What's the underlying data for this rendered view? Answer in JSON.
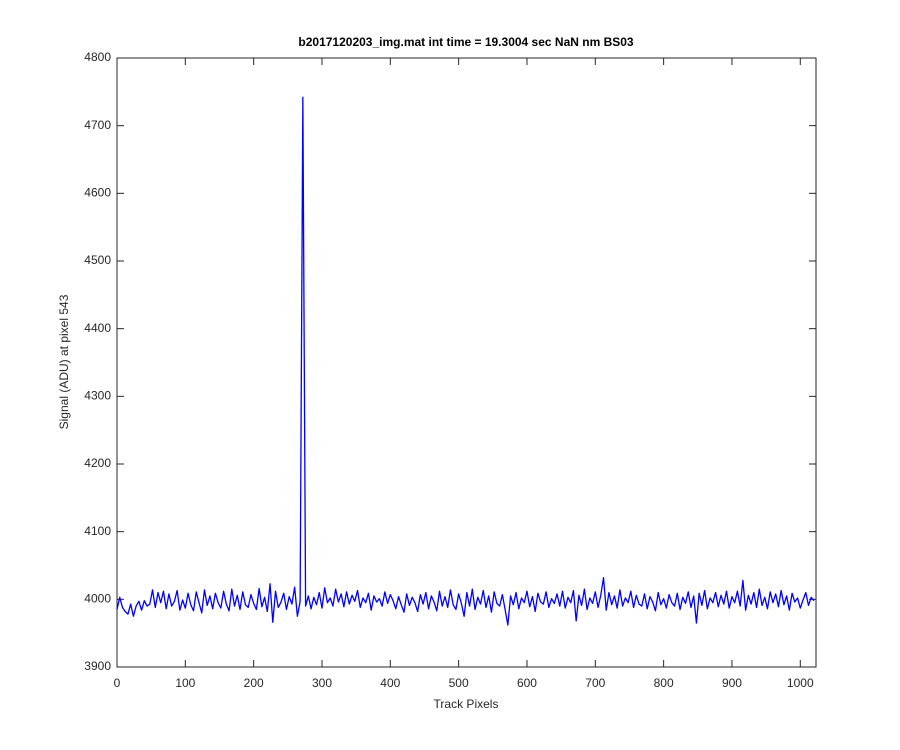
{
  "chart_data": {
    "type": "line",
    "title": "b2017120203_img.mat int time = 19.3004 sec  NaN nm BS03",
    "x_label": "Track Pixels",
    "y_label": "Signal (ADU) at pixel 543",
    "color": "#0000ff",
    "xlim": [
      0,
      1023
    ],
    "ylim": [
      3900,
      4800
    ],
    "xticks": [
      0,
      100,
      200,
      300,
      400,
      500,
      600,
      700,
      800,
      900,
      1000
    ],
    "yticks": [
      3900,
      4000,
      4100,
      4200,
      4300,
      4400,
      4500,
      4600,
      4700,
      4800
    ],
    "grid": false,
    "x": [
      0,
      4,
      8,
      12,
      16,
      20,
      24,
      28,
      32,
      36,
      40,
      44,
      48,
      52,
      56,
      60,
      64,
      68,
      72,
      76,
      80,
      84,
      88,
      92,
      96,
      100,
      104,
      108,
      112,
      116,
      120,
      124,
      128,
      132,
      136,
      140,
      144,
      148,
      152,
      156,
      160,
      164,
      168,
      172,
      176,
      180,
      184,
      188,
      192,
      196,
      200,
      204,
      208,
      212,
      216,
      220,
      224,
      228,
      232,
      236,
      240,
      244,
      248,
      252,
      256,
      260,
      264,
      268,
      272,
      276,
      280,
      284,
      288,
      292,
      296,
      300,
      304,
      308,
      312,
      316,
      320,
      324,
      328,
      332,
      336,
      340,
      344,
      348,
      352,
      356,
      360,
      364,
      368,
      372,
      376,
      380,
      384,
      388,
      392,
      396,
      400,
      404,
      408,
      412,
      416,
      420,
      424,
      428,
      432,
      436,
      440,
      444,
      448,
      452,
      456,
      460,
      464,
      468,
      472,
      476,
      480,
      484,
      488,
      492,
      496,
      500,
      504,
      508,
      512,
      516,
      520,
      524,
      528,
      532,
      536,
      540,
      544,
      548,
      552,
      556,
      560,
      564,
      568,
      572,
      576,
      580,
      584,
      588,
      592,
      596,
      600,
      604,
      608,
      612,
      616,
      620,
      624,
      628,
      632,
      636,
      640,
      644,
      648,
      652,
      656,
      660,
      664,
      668,
      672,
      676,
      680,
      684,
      688,
      692,
      696,
      700,
      704,
      708,
      712,
      716,
      720,
      724,
      728,
      732,
      736,
      740,
      744,
      748,
      752,
      756,
      760,
      764,
      768,
      772,
      776,
      780,
      784,
      788,
      792,
      796,
      800,
      804,
      808,
      812,
      816,
      820,
      824,
      828,
      832,
      836,
      840,
      844,
      848,
      852,
      856,
      860,
      864,
      868,
      872,
      876,
      880,
      884,
      888,
      892,
      896,
      900,
      904,
      908,
      912,
      916,
      920,
      924,
      928,
      932,
      936,
      940,
      944,
      948,
      952,
      956,
      960,
      964,
      968,
      972,
      976,
      980,
      984,
      988,
      992,
      996,
      1000,
      1004,
      1008,
      1012,
      1016,
      1020
    ],
    "values": [
      3985,
      4003,
      3988,
      3982,
      3978,
      3993,
      3975,
      3990,
      3997,
      3984,
      3998,
      3990,
      3993,
      4014,
      3988,
      4010,
      3995,
      4012,
      3986,
      4008,
      3990,
      3997,
      4013,
      3984,
      3999,
      3987,
      4009,
      3992,
      3983,
      4011,
      3995,
      3980,
      4014,
      3991,
      4005,
      3986,
      4009,
      3995,
      3987,
      4012,
      3993,
      3983,
      4015,
      3990,
      4006,
      3985,
      4011,
      3992,
      3988,
      4007,
      3994,
      3985,
      4016,
      3989,
      4003,
      3982,
      4023,
      3966,
      4012,
      3988,
      3996,
      4009,
      3985,
      4004,
      3993,
      4018,
      3975,
      3997,
      4742,
      3990,
      4005,
      3986,
      4003,
      3992,
      4010,
      3987,
      4017,
      3995,
      4002,
      3990,
      4015,
      3996,
      4008,
      3989,
      4011,
      3993,
      4006,
      3997,
      4013,
      3988,
      4002,
      3995,
      4009,
      3984,
      4005,
      3996,
      4001,
      3990,
      4011,
      3994,
      4007,
      3998,
      3986,
      4004,
      3992,
      3981,
      4008,
      3991,
      4003,
      3995,
      3982,
      4007,
      3993,
      4010,
      3986,
      4005,
      3996,
      3983,
      4012,
      3990,
      4004,
      3988,
      4014,
      3992,
      3985,
      4008,
      3994,
      3975,
      4010,
      3990,
      4015,
      3985,
      4003,
      3993,
      4013,
      3988,
      4005,
      3981,
      4011,
      3994,
      3990,
      4007,
      3985,
      3962,
      4005,
      3992,
      4010,
      3986,
      4002,
      3995,
      4012,
      3989,
      4004,
      3982,
      4009,
      3996,
      3993,
      4011,
      3988,
      4001,
      3994,
      4008,
      3990,
      4012,
      3987,
      4003,
      3995,
      4013,
      3968,
      4006,
      3991,
      4015,
      3985,
      4002,
      3994,
      4011,
      3988,
      4006,
      4032,
      3984,
      4010,
      3992,
      4005,
      3987,
      4014,
      3990,
      4002,
      3995,
      4012,
      3988,
      4006,
      3993,
      3990,
      4008,
      3986,
      4004,
      3996,
      3983,
      4010,
      3992,
      4001,
      3987,
      4007,
      3995,
      3990,
      4009,
      3985,
      4003,
      3994,
      4011,
      3988,
      4005,
      3965,
      4009,
      3991,
      4013,
      3986,
      4002,
      3995,
      4010,
      3989,
      4006,
      3993,
      4012,
      3987,
      4004,
      3995,
      4012,
      3990,
      4028,
      3984,
      4006,
      3993,
      4010,
      3988,
      4015,
      3991,
      4003,
      3986,
      4011,
      3995,
      4008,
      3989,
      4013,
      3992,
      4005,
      3984,
      4009,
      3996,
      4002,
      3987,
      3999,
      4010,
      3991,
      4003,
      3998
    ]
  }
}
